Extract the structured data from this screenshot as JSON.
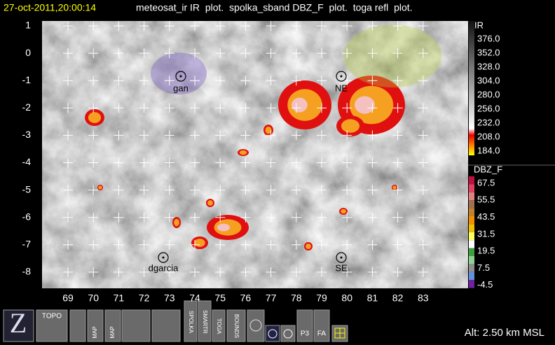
{
  "header": {
    "time": "27-oct-2011,20:00:14",
    "layers": "meteosat_ir IR  plot.  spolka_sband DBZ_F  plot.  toga refl  plot."
  },
  "map": {
    "lat_labels": [
      1,
      0,
      -1,
      -2,
      -3,
      -4,
      -5,
      -6,
      -7,
      -8
    ],
    "lon_labels": [
      69,
      70,
      71,
      72,
      73,
      74,
      75,
      76,
      77,
      78,
      79,
      80,
      81,
      82,
      83
    ],
    "stations": [
      {
        "label": "gan"
      },
      {
        "label": "NE"
      },
      {
        "label": "dgarcia"
      },
      {
        "label": "SE"
      }
    ]
  },
  "legends": [
    {
      "title": "IR",
      "labels": [
        "376.0",
        "352.0",
        "328.0",
        "304.0",
        "280.0",
        "256.0",
        "232.0",
        "208.0",
        "184.0"
      ]
    },
    {
      "title": "DBZ_F",
      "labels": [
        "67.5",
        "55.5",
        "43.5",
        "31.5",
        "19.5",
        "7.5",
        "-4.5"
      ]
    }
  ],
  "toolbar": {
    "logo": "Z",
    "buttons": [
      "TOPO",
      "MAP",
      "MAP",
      "SPOLKA",
      "SMARTR",
      "TOGA",
      "BOUNDS",
      "P3",
      "FA"
    ]
  },
  "status": "Alt: 2.50 km MSL"
}
